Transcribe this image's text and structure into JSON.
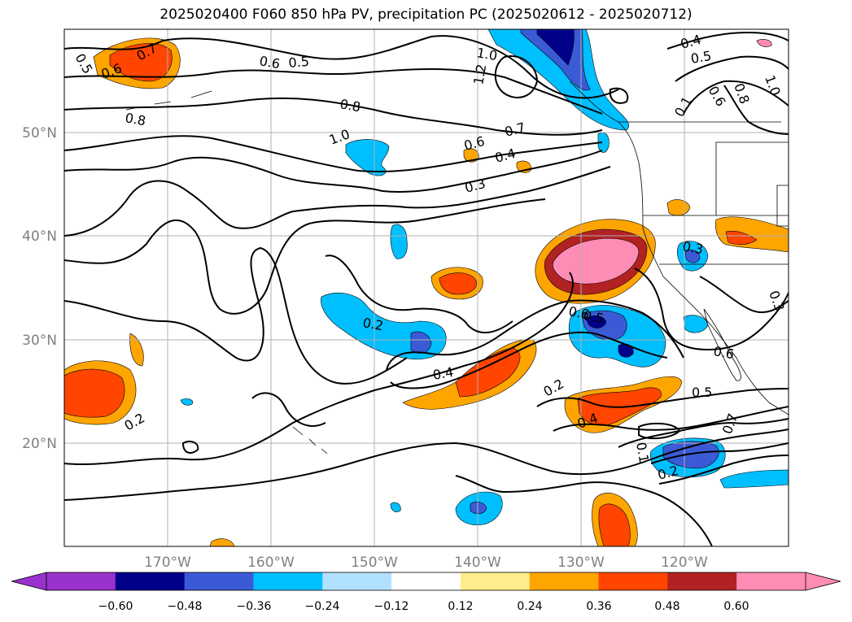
{
  "title": "2025020400 F060 850 hPa PV, precipitation PC (2025020612 - 2025020712)",
  "lat_labels": [
    "50°N",
    "40°N",
    "30°N",
    "20°N"
  ],
  "lon_labels": [
    "170°W",
    "160°W",
    "150°W",
    "140°W",
    "130°W",
    "120°W"
  ],
  "colorbar": {
    "ticks": [
      "−0.60",
      "−0.48",
      "−0.36",
      "−0.24",
      "−0.12",
      "0.12",
      "0.24",
      "0.36",
      "0.48",
      "0.60"
    ],
    "colors": [
      "#9932cc",
      "#00008b",
      "#3b5bd6",
      "#00bfff",
      "#b0e2ff",
      "#ffffff",
      "#ffec8b",
      "#ffa500",
      "#ff4500",
      "#b22222",
      "#ff8cb4"
    ]
  },
  "contour_labels": [
    "0.5",
    "0.7",
    "0.6",
    "0.8",
    "0.6",
    "0.5",
    "1.0",
    "1.2",
    "0.4",
    "0.5",
    "0.6",
    "0.8",
    "1.0",
    "0.1",
    "1.0",
    "0.7",
    "0.6",
    "0.4",
    "0.3",
    "0.2",
    "0.4",
    "0.2",
    "0.4",
    "0.3",
    "0.6",
    "0.5",
    "0.6",
    "0.5",
    "0.7",
    "0.1",
    "0.2",
    "0.3",
    "0.2",
    "0.8"
  ]
}
